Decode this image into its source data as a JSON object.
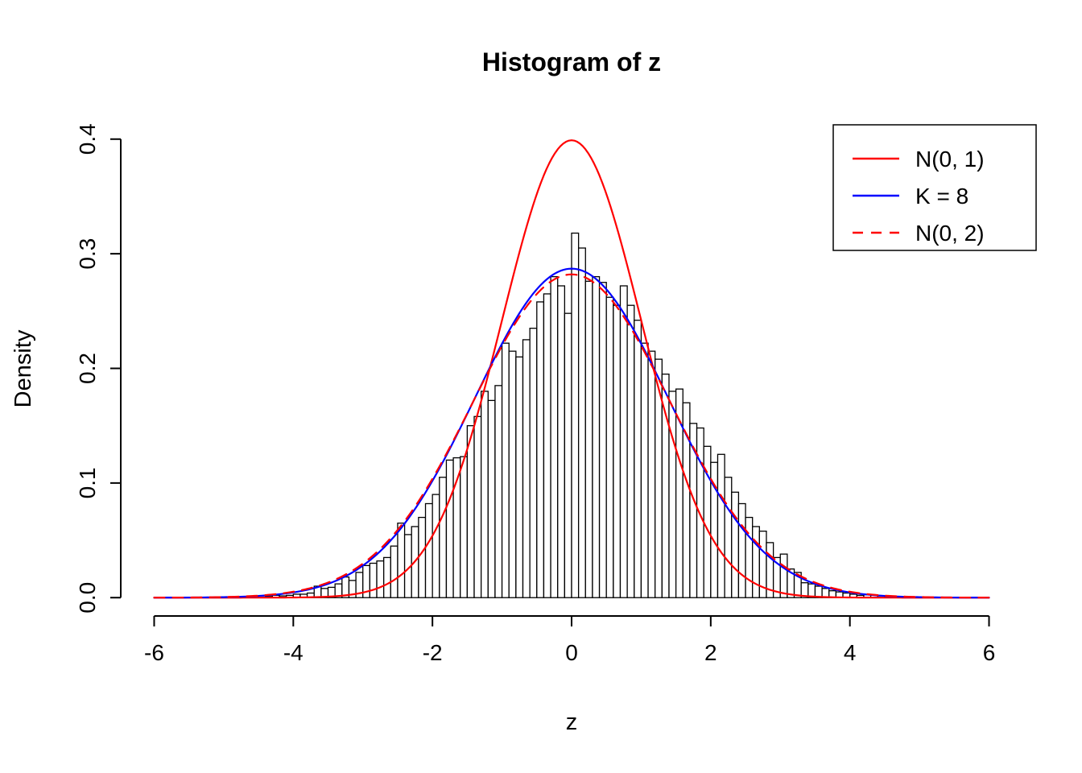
{
  "chart_data": {
    "type": "histogram",
    "title": "Histogram of z",
    "xlabel": "z",
    "ylabel": "Density",
    "xlim": [
      -6,
      6
    ],
    "ylim": [
      0,
      0.4
    ],
    "x_ticks": [
      -6,
      -4,
      -2,
      0,
      2,
      4,
      6
    ],
    "x_tick_labels": [
      "-6",
      "-4",
      "-2",
      "0",
      "2",
      "4",
      "6"
    ],
    "y_ticks": [
      0,
      0.1,
      0.2,
      0.3,
      0.4
    ],
    "y_tick_labels": [
      "0.0",
      "0.1",
      "0.2",
      "0.3",
      "0.4"
    ],
    "grid": false,
    "colors": {
      "bar_fill": "#FFFFFF",
      "bar_stroke": "#000000",
      "axis": "#000000",
      "red_curve": "#FF0000",
      "blue_curve": "#0000FF"
    },
    "histogram": {
      "bin_start": -4.5,
      "bin_width": 0.1,
      "densities": [
        0.0015,
        0.001,
        0.002,
        0.0015,
        0.002,
        0.003,
        0.003,
        0.004,
        0.01,
        0.008,
        0.009,
        0.012,
        0.018,
        0.015,
        0.022,
        0.028,
        0.03,
        0.032,
        0.035,
        0.045,
        0.065,
        0.055,
        0.062,
        0.07,
        0.082,
        0.09,
        0.105,
        0.12,
        0.122,
        0.123,
        0.15,
        0.158,
        0.18,
        0.172,
        0.185,
        0.222,
        0.215,
        0.21,
        0.225,
        0.235,
        0.258,
        0.265,
        0.28,
        0.272,
        0.248,
        0.318,
        0.305,
        0.276,
        0.28,
        0.275,
        0.262,
        0.255,
        0.272,
        0.255,
        0.242,
        0.222,
        0.215,
        0.208,
        0.195,
        0.18,
        0.182,
        0.17,
        0.152,
        0.148,
        0.132,
        0.118,
        0.125,
        0.105,
        0.092,
        0.082,
        0.07,
        0.062,
        0.058,
        0.048,
        0.035,
        0.038,
        0.025,
        0.022,
        0.013,
        0.012,
        0.01,
        0.008,
        0.006,
        0.005,
        0.004,
        0.003,
        0.002,
        0.0025,
        0.002,
        0.0015,
        0.001,
        0.001
      ]
    },
    "curves": [
      {
        "name": "N(0, 1)",
        "mean": 0,
        "sd": 1.0,
        "peak": 0.399,
        "color": "#FF0000",
        "style": "solid"
      },
      {
        "name": "K = 8",
        "mean": 0,
        "sd": 1.39,
        "peak": 0.287,
        "color": "#0000FF",
        "style": "solid"
      },
      {
        "name": "N(0, 2)",
        "mean": 0,
        "sd": 1.414,
        "peak": 0.282,
        "color": "#FF0000",
        "style": "dashed"
      }
    ],
    "legend": {
      "position": "topright",
      "entries": [
        {
          "label": "N(0, 1)",
          "color": "#FF0000",
          "style": "solid"
        },
        {
          "label": "K = 8",
          "color": "#0000FF",
          "style": "solid"
        },
        {
          "label": "N(0, 2)",
          "color": "#FF0000",
          "style": "dashed"
        }
      ]
    }
  }
}
